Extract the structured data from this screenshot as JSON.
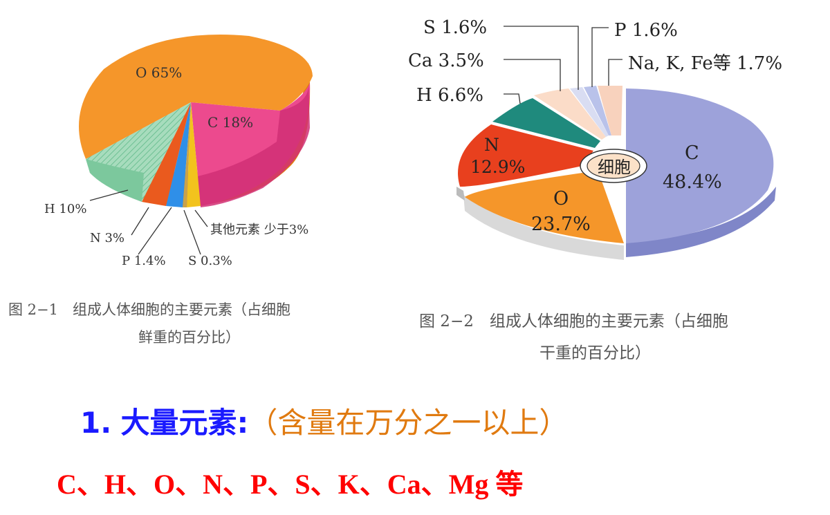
{
  "chart_data": [
    {
      "type": "pie",
      "title": "图 2−1　组成人体细胞的主要元素（占细胞鲜重的百分比）",
      "caption_line1": "图 2−1　组成人体细胞的主要元素（占细胞",
      "caption_line2": "鲜重的百分比）",
      "slices": [
        {
          "label": "O 65%",
          "name": "O",
          "value": 65,
          "color": "#f5962a"
        },
        {
          "label": "C 18%",
          "name": "C",
          "value": 18,
          "color": "#ec4a8e"
        },
        {
          "label": "其他元素 少于3%",
          "name": "其他元素",
          "value": 2.3,
          "color": "#f2c31d"
        },
        {
          "label": "S 0.3%",
          "name": "S",
          "value": 0.3,
          "color": "#c9a24a"
        },
        {
          "label": "P 1.4%",
          "name": "P",
          "value": 1.4,
          "color": "#2f8fe8"
        },
        {
          "label": "N 3%",
          "name": "N",
          "value": 3,
          "color": "#ea5a1e"
        },
        {
          "label": "H 10%",
          "name": "H",
          "value": 10,
          "color": "#8fd2ac"
        }
      ]
    },
    {
      "type": "pie",
      "title": "图 2−2　组成人体细胞的主要元素（占细胞干重的百分比）",
      "caption_line1": "图 2−2　组成人体细胞的主要元素（占细胞",
      "caption_line2": "干重的百分比）",
      "center_label": "细胞",
      "slices": [
        {
          "label": "C 48.4%",
          "name": "C",
          "value": 48.4,
          "color": "#9da2da"
        },
        {
          "label": "O 23.7%",
          "name": "O",
          "value": 23.7,
          "color": "#f5962a"
        },
        {
          "label": "N 12.9%",
          "name": "N",
          "value": 12.9,
          "color": "#e8401e"
        },
        {
          "label": "H 6.6%",
          "name": "H",
          "value": 6.6,
          "color": "#1f8a7d"
        },
        {
          "label": "Ca 3.5%",
          "name": "Ca",
          "value": 3.5,
          "color": "#fbdcc8"
        },
        {
          "label": "S 1.6%",
          "name": "S",
          "value": 1.6,
          "color": "#d9ddf2"
        },
        {
          "label": "P 1.6%",
          "name": "P",
          "value": 1.6,
          "color": "#b9c2ea"
        },
        {
          "label": "Na, K, Fe等 1.7%",
          "name": "Na, K, Fe等",
          "value": 1.7,
          "color": "#f8d2bd"
        }
      ]
    }
  ],
  "slide": {
    "number": "1.",
    "heading": "大量元素:",
    "note": "（含量在万分之一以上）",
    "elements": "C、H、O、N、P、S、K、Ca、Mg 等"
  }
}
